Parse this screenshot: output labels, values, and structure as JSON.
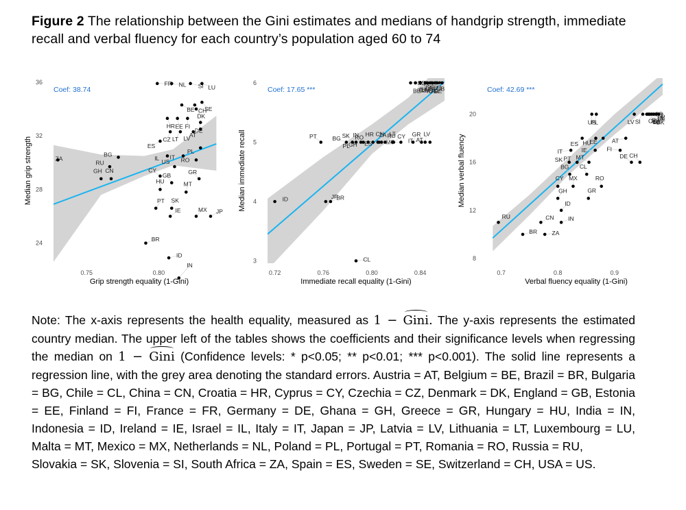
{
  "caption": {
    "label": "Figure 2",
    "text": "The relationship between the Gini estimates and medians of handgrip strength, immediate recall and verbal fluency for each country’s population aged 60 to 74"
  },
  "chart_data": [
    {
      "type": "scatter",
      "title": "",
      "xlabel": "Grip strength equality (1-Gini)",
      "ylabel": "Median grip strength",
      "xlim": [
        0.727,
        0.846
      ],
      "ylim": [
        22.5,
        36.3
      ],
      "xticks": [
        0.75,
        0.8
      ],
      "xtick_labels": [
        "0.75",
        "0.80"
      ],
      "yticks": [
        24,
        28,
        32,
        36
      ],
      "ytick_labels": [
        "24",
        "28",
        "32",
        "36"
      ],
      "coef": "Coef: 38.74",
      "regression": {
        "x": [
          0.727,
          0.84
        ],
        "y": [
          26.9,
          31.4
        ]
      },
      "ci": {
        "x": [
          0.727,
          0.76,
          0.79,
          0.81,
          0.84
        ],
        "upper": [
          31.3,
          30.6,
          30.5,
          31.0,
          33.5
        ],
        "lower": [
          22.6,
          27.6,
          29.0,
          29.8,
          29.4
        ]
      },
      "points": [
        {
          "label": "FR",
          "x": 0.799,
          "y": 35.9
        },
        {
          "label": "NL",
          "x": 0.809,
          "y": 35.9
        },
        {
          "label": "SI",
          "x": 0.822,
          "y": 35.9
        },
        {
          "label": "LU",
          "x": 0.83,
          "y": 35.9
        },
        {
          "label": "BE",
          "x": 0.816,
          "y": 34.3
        },
        {
          "label": "CH",
          "x": 0.825,
          "y": 34.3
        },
        {
          "label": "SE",
          "x": 0.83,
          "y": 34.5
        },
        {
          "label": "DK",
          "x": 0.826,
          "y": 34.0
        },
        {
          "label": "HR",
          "x": 0.806,
          "y": 33.3
        },
        {
          "label": "EE",
          "x": 0.813,
          "y": 33.3
        },
        {
          "label": "FI",
          "x": 0.82,
          "y": 33.3
        },
        {
          "label": "DE",
          "x": 0.829,
          "y": 33.0
        },
        {
          "label": "CZ",
          "x": 0.808,
          "y": 32.3
        },
        {
          "label": "LT",
          "x": 0.815,
          "y": 32.3
        },
        {
          "label": "LV",
          "x": 0.824,
          "y": 32.3
        },
        {
          "label": "AT",
          "x": 0.829,
          "y": 32.5
        },
        {
          "label": "ES",
          "x": 0.801,
          "y": 31.6
        },
        {
          "label": "PL",
          "x": 0.829,
          "y": 31.1
        },
        {
          "label": "IL",
          "x": 0.806,
          "y": 30.5
        },
        {
          "label": "IT",
          "x": 0.817,
          "y": 30.5
        },
        {
          "label": "RO",
          "x": 0.826,
          "y": 30.2
        },
        {
          "label": "ZA",
          "x": 0.73,
          "y": 30.2
        },
        {
          "label": "BG",
          "x": 0.772,
          "y": 30.4
        },
        {
          "label": "RU",
          "x": 0.766,
          "y": 29.7
        },
        {
          "label": "US",
          "x": 0.811,
          "y": 29.7
        },
        {
          "label": "CY",
          "x": 0.801,
          "y": 29.0
        },
        {
          "label": "GR",
          "x": 0.828,
          "y": 28.8
        },
        {
          "label": "GB",
          "x": 0.809,
          "y": 28.5
        },
        {
          "label": "GH",
          "x": 0.76,
          "y": 28.8
        },
        {
          "label": "CN",
          "x": 0.767,
          "y": 28.8
        },
        {
          "label": "HU",
          "x": 0.801,
          "y": 28.0
        },
        {
          "label": "MT",
          "x": 0.819,
          "y": 27.8
        },
        {
          "label": "SK",
          "x": 0.809,
          "y": 26.6
        },
        {
          "label": "PT",
          "x": 0.798,
          "y": 26.6
        },
        {
          "label": "MX",
          "x": 0.826,
          "y": 26.0
        },
        {
          "label": "IE",
          "x": 0.808,
          "y": 26.0
        },
        {
          "label": "JP",
          "x": 0.836,
          "y": 26.0
        },
        {
          "label": "BR",
          "x": 0.791,
          "y": 24.0
        },
        {
          "label": "ID",
          "x": 0.807,
          "y": 22.9
        },
        {
          "label": "IN",
          "x": 0.814,
          "y": 21.4
        }
      ]
    },
    {
      "type": "scatter",
      "title": "",
      "xlabel": "Immediate recall equality (1-Gini)",
      "ylabel": "Median immediate recall",
      "xlim": [
        0.714,
        0.86
      ],
      "ylim": [
        2.96,
        6.08
      ],
      "xticks": [
        0.72,
        0.76,
        0.8,
        0.84
      ],
      "xtick_labels": [
        "0.72",
        "0.76",
        "0.80",
        "0.84"
      ],
      "yticks": [
        3,
        4,
        5,
        6
      ],
      "ytick_labels": [
        "3",
        "4",
        "5",
        "6"
      ],
      "coef": "Coef: 17.65 ***",
      "regression": {
        "x": [
          0.714,
          0.86
        ],
        "y": [
          3.45,
          6.02
        ]
      },
      "ci": {
        "x": [
          0.714,
          0.76,
          0.8,
          0.83,
          0.86
        ],
        "upper": [
          4.05,
          4.75,
          5.3,
          5.75,
          6.35
        ],
        "lower": [
          2.85,
          3.85,
          4.8,
          5.3,
          5.7
        ]
      },
      "points": [
        {
          "label": "EE",
          "x": 0.832,
          "y": 6.0
        },
        {
          "label": "SI",
          "x": 0.836,
          "y": 6.0
        },
        {
          "label": "SE",
          "x": 0.84,
          "y": 6.0
        },
        {
          "label": "CH",
          "x": 0.844,
          "y": 6.0
        },
        {
          "label": "FI",
          "x": 0.848,
          "y": 6.0
        },
        {
          "label": "GB",
          "x": 0.853,
          "y": 6.0
        },
        {
          "label": "IL",
          "x": 0.836,
          "y": 6.0
        },
        {
          "label": "LU",
          "x": 0.84,
          "y": 6.0
        },
        {
          "label": "IE",
          "x": 0.845,
          "y": 6.0
        },
        {
          "label": "US",
          "x": 0.849,
          "y": 6.0
        },
        {
          "label": "FR",
          "x": 0.852,
          "y": 6.0
        },
        {
          "label": "DE",
          "x": 0.856,
          "y": 6.0
        },
        {
          "label": "BE",
          "x": 0.84,
          "y": 6.0
        },
        {
          "label": "CZ",
          "x": 0.846,
          "y": 6.0
        },
        {
          "label": "HU",
          "x": 0.85,
          "y": 6.0
        },
        {
          "label": "DK",
          "x": 0.854,
          "y": 6.0
        },
        {
          "label": "NL",
          "x": 0.858,
          "y": 6.0
        },
        {
          "label": "PL",
          "x": 0.787,
          "y": 5.0
        },
        {
          "label": "GH",
          "x": 0.793,
          "y": 5.0
        },
        {
          "label": "ES",
          "x": 0.806,
          "y": 5.0
        },
        {
          "label": "MT",
          "x": 0.824,
          "y": 5.0
        },
        {
          "label": "IT",
          "x": 0.841,
          "y": 5.0
        },
        {
          "label": "AT",
          "x": 0.848,
          "y": 5.0
        },
        {
          "label": "BG",
          "x": 0.779,
          "y": 5.0
        },
        {
          "label": "RO",
          "x": 0.797,
          "y": 5.0
        },
        {
          "label": "PT",
          "x": 0.758,
          "y": 5.0
        },
        {
          "label": "SK",
          "x": 0.784,
          "y": 5.0
        },
        {
          "label": "IN",
          "x": 0.791,
          "y": 5.0
        },
        {
          "label": "HR",
          "x": 0.801,
          "y": 5.0
        },
        {
          "label": "CN",
          "x": 0.808,
          "y": 5.0
        },
        {
          "label": "LT",
          "x": 0.817,
          "y": 5.0
        },
        {
          "label": "LV",
          "x": 0.844,
          "y": 5.0
        },
        {
          "label": "GR",
          "x": 0.834,
          "y": 5.0
        },
        {
          "label": "ZA",
          "x": 0.805,
          "y": 5.0
        },
        {
          "label": "RU",
          "x": 0.811,
          "y": 5.0
        },
        {
          "label": "CY",
          "x": 0.818,
          "y": 5.0
        },
        {
          "label": "JP",
          "x": 0.762,
          "y": 4.0
        },
        {
          "label": "BR",
          "x": 0.766,
          "y": 4.0
        },
        {
          "label": "ID",
          "x": 0.72,
          "y": 4.0
        },
        {
          "label": "CL",
          "x": 0.787,
          "y": 3.0
        }
      ]
    },
    {
      "type": "scatter",
      "title": "",
      "xlabel": "Verbal fluency equality (1-Gini)",
      "ylabel": "Median verbal fluency",
      "xlim": [
        0.675,
        0.99
      ],
      "ylim": [
        7.6,
        23.0
      ],
      "xticks": [
        0.7,
        0.8,
        0.9
      ],
      "xtick_labels": [
        "0.7",
        "0.8",
        "0.9"
      ],
      "yticks": [
        8,
        12,
        16,
        20
      ],
      "ytick_labels": [
        "8",
        "12",
        "16",
        "20"
      ],
      "coef": "Coef: 42.69 ***",
      "regression": {
        "x": [
          0.685,
          0.985
        ],
        "y": [
          9.7,
          22.5
        ]
      },
      "ci": {
        "x": [
          0.685,
          0.75,
          0.82,
          0.9,
          0.985
        ],
        "upper": [
          10.7,
          13.3,
          16.4,
          20.0,
          23.4
        ],
        "lower": [
          8.6,
          11.6,
          15.0,
          18.3,
          21.6
        ]
      },
      "points": [
        {
          "label": "GB",
          "x": 0.959,
          "y": 20.0
        },
        {
          "label": "LT",
          "x": 0.962,
          "y": 20.0
        },
        {
          "label": "FR",
          "x": 0.966,
          "y": 20.0
        },
        {
          "label": "NL",
          "x": 0.97,
          "y": 20.0
        },
        {
          "label": "SE",
          "x": 0.974,
          "y": 20.0
        },
        {
          "label": "IL",
          "x": 0.957,
          "y": 20.0
        },
        {
          "label": "HR",
          "x": 0.961,
          "y": 20.0
        },
        {
          "label": "LU",
          "x": 0.965,
          "y": 20.0
        },
        {
          "label": "BE",
          "x": 0.969,
          "y": 20.0
        },
        {
          "label": "DK",
          "x": 0.978,
          "y": 20.0
        },
        {
          "label": "US",
          "x": 0.86,
          "y": 20.0
        },
        {
          "label": "PL",
          "x": 0.868,
          "y": 20.0
        },
        {
          "label": "LV",
          "x": 0.935,
          "y": 20.0
        },
        {
          "label": "SI",
          "x": 0.95,
          "y": 20.0
        },
        {
          "label": "CZ",
          "x": 0.978,
          "y": 20.0
        },
        {
          "label": "ES",
          "x": 0.843,
          "y": 18.0
        },
        {
          "label": "HU",
          "x": 0.867,
          "y": 18.0
        },
        {
          "label": "EE",
          "x": 0.88,
          "y": 18.0
        },
        {
          "label": "AT",
          "x": 0.92,
          "y": 18.0
        },
        {
          "label": "IT",
          "x": 0.823,
          "y": 17.0
        },
        {
          "label": "IE",
          "x": 0.866,
          "y": 17.0
        },
        {
          "label": "FI",
          "x": 0.91,
          "y": 17.0
        },
        {
          "label": "SK",
          "x": 0.82,
          "y": 16.0
        },
        {
          "label": "PT",
          "x": 0.834,
          "y": 16.0
        },
        {
          "label": "MT",
          "x": 0.855,
          "y": 16.0
        },
        {
          "label": "DE",
          "x": 0.93,
          "y": 16.0
        },
        {
          "label": "CH",
          "x": 0.945,
          "y": 16.0
        },
        {
          "label": "BG",
          "x": 0.821,
          "y": 15.0
        },
        {
          "label": "CL",
          "x": 0.851,
          "y": 15.0
        },
        {
          "label": "RO",
          "x": 0.877,
          "y": 14.0
        },
        {
          "label": "MX",
          "x": 0.827,
          "y": 14.0
        },
        {
          "label": "CY",
          "x": 0.8,
          "y": 14.0
        },
        {
          "label": "GR",
          "x": 0.854,
          "y": 13.0
        },
        {
          "label": "GH",
          "x": 0.8,
          "y": 13.0
        },
        {
          "label": "ID",
          "x": 0.806,
          "y": 12.0
        },
        {
          "label": "RU",
          "x": 0.695,
          "y": 11.0
        },
        {
          "label": "CN",
          "x": 0.77,
          "y": 11.0
        },
        {
          "label": "IN",
          "x": 0.806,
          "y": 11.0
        },
        {
          "label": "BR",
          "x": 0.738,
          "y": 10.0
        },
        {
          "label": "ZA",
          "x": 0.777,
          "y": 10.0
        }
      ]
    }
  ],
  "note": {
    "lines": [
      "Note: The x-axis represents the health equality, measured as",
      "The y-axis represents the estimated country median. The upper left of the tables shows the coefficients and their significance levels when regressing the median on",
      "(Confidence levels: * p<0.05; ** p<0.01; *** p<0.001). The solid line represents a regression line, with the grey area denoting the standard errors.",
      "Austria = AT, Belgium = BE, Brazil = BR, Bulgaria = BG, Chile = CL, China = CN, Croatia = HR, Cyprus = CY, Czechia = CZ, Denmark = DK, England = GB, Estonia = EE, Finland = FI, France = FR, Germany = DE, Ghana = GH, Greece = GR, Hungary = HU, India = IN, Indonesia = ID, Ireland = IE, Israel = IL, Italy = IT, Japan = JP, Latvia = LV, Lithuania = LT, Luxembourg = LU, Malta = MT, Mexico = MX, Netherlands = NL, Poland = PL, Portugal = PT, Romania = RO, Russia = RU,",
      "Slovakia = SK, Slovenia = SI, South Africa = ZA, Spain = ES, Sweden = SE, Switzerland = CH, USA = US."
    ],
    "formula_prefix": "1 − ",
    "formula_hat": "Gini",
    "formula_suffix": "."
  },
  "colors": {
    "regression": "#1ab4f0",
    "ci_band": "#d4d4d4",
    "point": "#000000",
    "leader": "#cfcfcf",
    "axis_text": "#4d4d4d",
    "coef_text": "#1f6fd1"
  }
}
